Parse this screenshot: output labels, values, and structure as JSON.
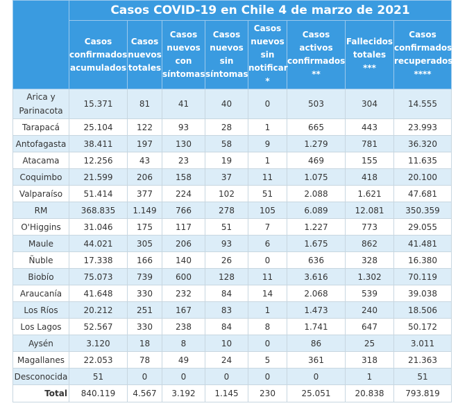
{
  "title": "Casos COVID-19 en Chile 4 de marzo de 2021",
  "headers": [
    [
      "Casos",
      "confirmados",
      "acumulados"
    ],
    [
      "Casos",
      "nuevos",
      "totales"
    ],
    [
      "Casos",
      "nuevos",
      "con",
      "síntomas"
    ],
    [
      "Casos",
      "nuevos",
      "sin",
      "síntomas"
    ],
    [
      "Casos",
      "nuevos",
      "sin",
      "notificar",
      "*"
    ],
    [
      "Casos",
      "activos",
      "confirmados",
      "**"
    ],
    [
      "Fallecidos",
      "totales",
      "***"
    ],
    [
      "Casos",
      "confirmados",
      "recuperados",
      "****"
    ]
  ],
  "rows": [
    {
      "region": "Arica y Parinacota",
      "values": [
        "15.371",
        "81",
        "41",
        "40",
        "0",
        "503",
        "304",
        "14.555"
      ]
    },
    {
      "region": "Tarapacá",
      "values": [
        "25.104",
        "122",
        "93",
        "28",
        "1",
        "665",
        "443",
        "23.993"
      ]
    },
    {
      "region": "Antofagasta",
      "values": [
        "38.411",
        "197",
        "130",
        "58",
        "9",
        "1.279",
        "781",
        "36.320"
      ]
    },
    {
      "region": "Atacama",
      "values": [
        "12.256",
        "43",
        "23",
        "19",
        "1",
        "469",
        "155",
        "11.635"
      ]
    },
    {
      "region": "Coquimbo",
      "values": [
        "21.599",
        "206",
        "158",
        "37",
        "11",
        "1.075",
        "418",
        "20.100"
      ]
    },
    {
      "region": "Valparaíso",
      "values": [
        "51.414",
        "377",
        "224",
        "102",
        "51",
        "2.088",
        "1.621",
        "47.681"
      ]
    },
    {
      "region": "RM",
      "values": [
        "368.835",
        "1.149",
        "766",
        "278",
        "105",
        "6.089",
        "12.081",
        "350.359"
      ]
    },
    {
      "region": "O'Higgins",
      "values": [
        "31.046",
        "175",
        "117",
        "51",
        "7",
        "1.227",
        "773",
        "29.055"
      ]
    },
    {
      "region": "Maule",
      "values": [
        "44.021",
        "305",
        "206",
        "93",
        "6",
        "1.675",
        "862",
        "41.481"
      ]
    },
    {
      "region": "Ñuble",
      "values": [
        "17.338",
        "166",
        "140",
        "26",
        "0",
        "636",
        "328",
        "16.380"
      ]
    },
    {
      "region": "Biobío",
      "values": [
        "75.073",
        "739",
        "600",
        "128",
        "11",
        "3.616",
        "1.302",
        "70.119"
      ]
    },
    {
      "region": "Araucanía",
      "values": [
        "41.648",
        "330",
        "232",
        "84",
        "14",
        "2.068",
        "539",
        "39.038"
      ]
    },
    {
      "region": "Los Ríos",
      "values": [
        "20.212",
        "251",
        "167",
        "83",
        "1",
        "1.473",
        "240",
        "18.506"
      ]
    },
    {
      "region": "Los Lagos",
      "values": [
        "52.567",
        "330",
        "238",
        "84",
        "8",
        "1.741",
        "647",
        "50.172"
      ]
    },
    {
      "region": "Aysén",
      "values": [
        "3.120",
        "18",
        "8",
        "10",
        "0",
        "86",
        "25",
        "3.011"
      ]
    },
    {
      "region": "Magallanes",
      "values": [
        "22.053",
        "78",
        "49",
        "24",
        "5",
        "361",
        "318",
        "21.363"
      ]
    },
    {
      "region": "Desconocida",
      "values": [
        "51",
        "0",
        "0",
        "0",
        "0",
        "0",
        "1",
        "51"
      ]
    }
  ],
  "total": {
    "label": "Total",
    "values": [
      "840.119",
      "4.567",
      "3.192",
      "1.145",
      "230",
      "25.051",
      "20.838",
      "793.819"
    ]
  },
  "colors": {
    "header_bg": "#3a9be0",
    "row_alt_bg": "#dcedf8",
    "row_bg": "#ffffff"
  }
}
